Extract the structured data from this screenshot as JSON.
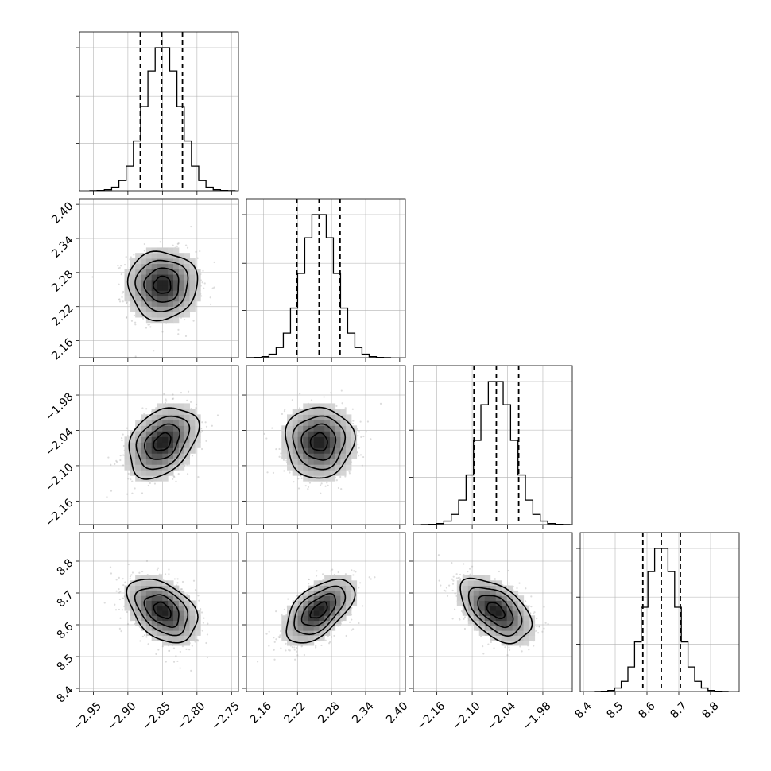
{
  "chart_data": {
    "type": "corner",
    "parameters": [
      {
        "ticks": [
          -2.95,
          -2.9,
          -2.85,
          -2.8,
          -2.75
        ],
        "tick_labels": [
          "−2.95",
          "−2.90",
          "−2.85",
          "−2.80",
          "−2.75"
        ],
        "range": [
          -2.97,
          -2.74
        ],
        "mean": -2.85,
        "sd": 0.025,
        "quantiles": [
          -2.882,
          -2.851,
          -2.821
        ]
      },
      {
        "ticks": [
          2.16,
          2.22,
          2.28,
          2.34,
          2.4
        ],
        "tick_labels": [
          "2.16",
          "2.22",
          "2.28",
          "2.34",
          "2.40"
        ],
        "range": [
          2.13,
          2.41
        ],
        "mean": 2.258,
        "sd": 0.03,
        "quantiles": [
          2.219,
          2.258,
          2.295
        ]
      },
      {
        "ticks": [
          -2.16,
          -2.1,
          -2.04,
          -1.98
        ],
        "tick_labels": [
          "−2.16",
          "−2.10",
          "−2.04",
          "−1.98"
        ],
        "range": [
          -2.2,
          -1.93
        ],
        "mean": -2.06,
        "sd": 0.03,
        "quantiles": [
          -2.097,
          -2.059,
          -2.021
        ]
      },
      {
        "ticks": [
          8.4,
          8.5,
          8.6,
          8.7,
          8.8
        ],
        "tick_labels": [
          "8.4",
          "8.5",
          "8.6",
          "8.7",
          "8.8"
        ],
        "range": [
          8.39,
          8.89
        ],
        "mean": 8.645,
        "sd": 0.05,
        "quantiles": [
          8.587,
          8.645,
          8.705
        ]
      }
    ],
    "correlations": {
      "1-0": 0.0,
      "2-0": 0.35,
      "2-1": 0.0,
      "3-0": -0.4,
      "3-1": 0.55,
      "3-2": -0.5
    },
    "contour_levels_sigma": [
      0.5,
      1.0,
      1.5,
      2.0
    ],
    "histogram_bins": 20,
    "grid": true,
    "legend": "none"
  }
}
